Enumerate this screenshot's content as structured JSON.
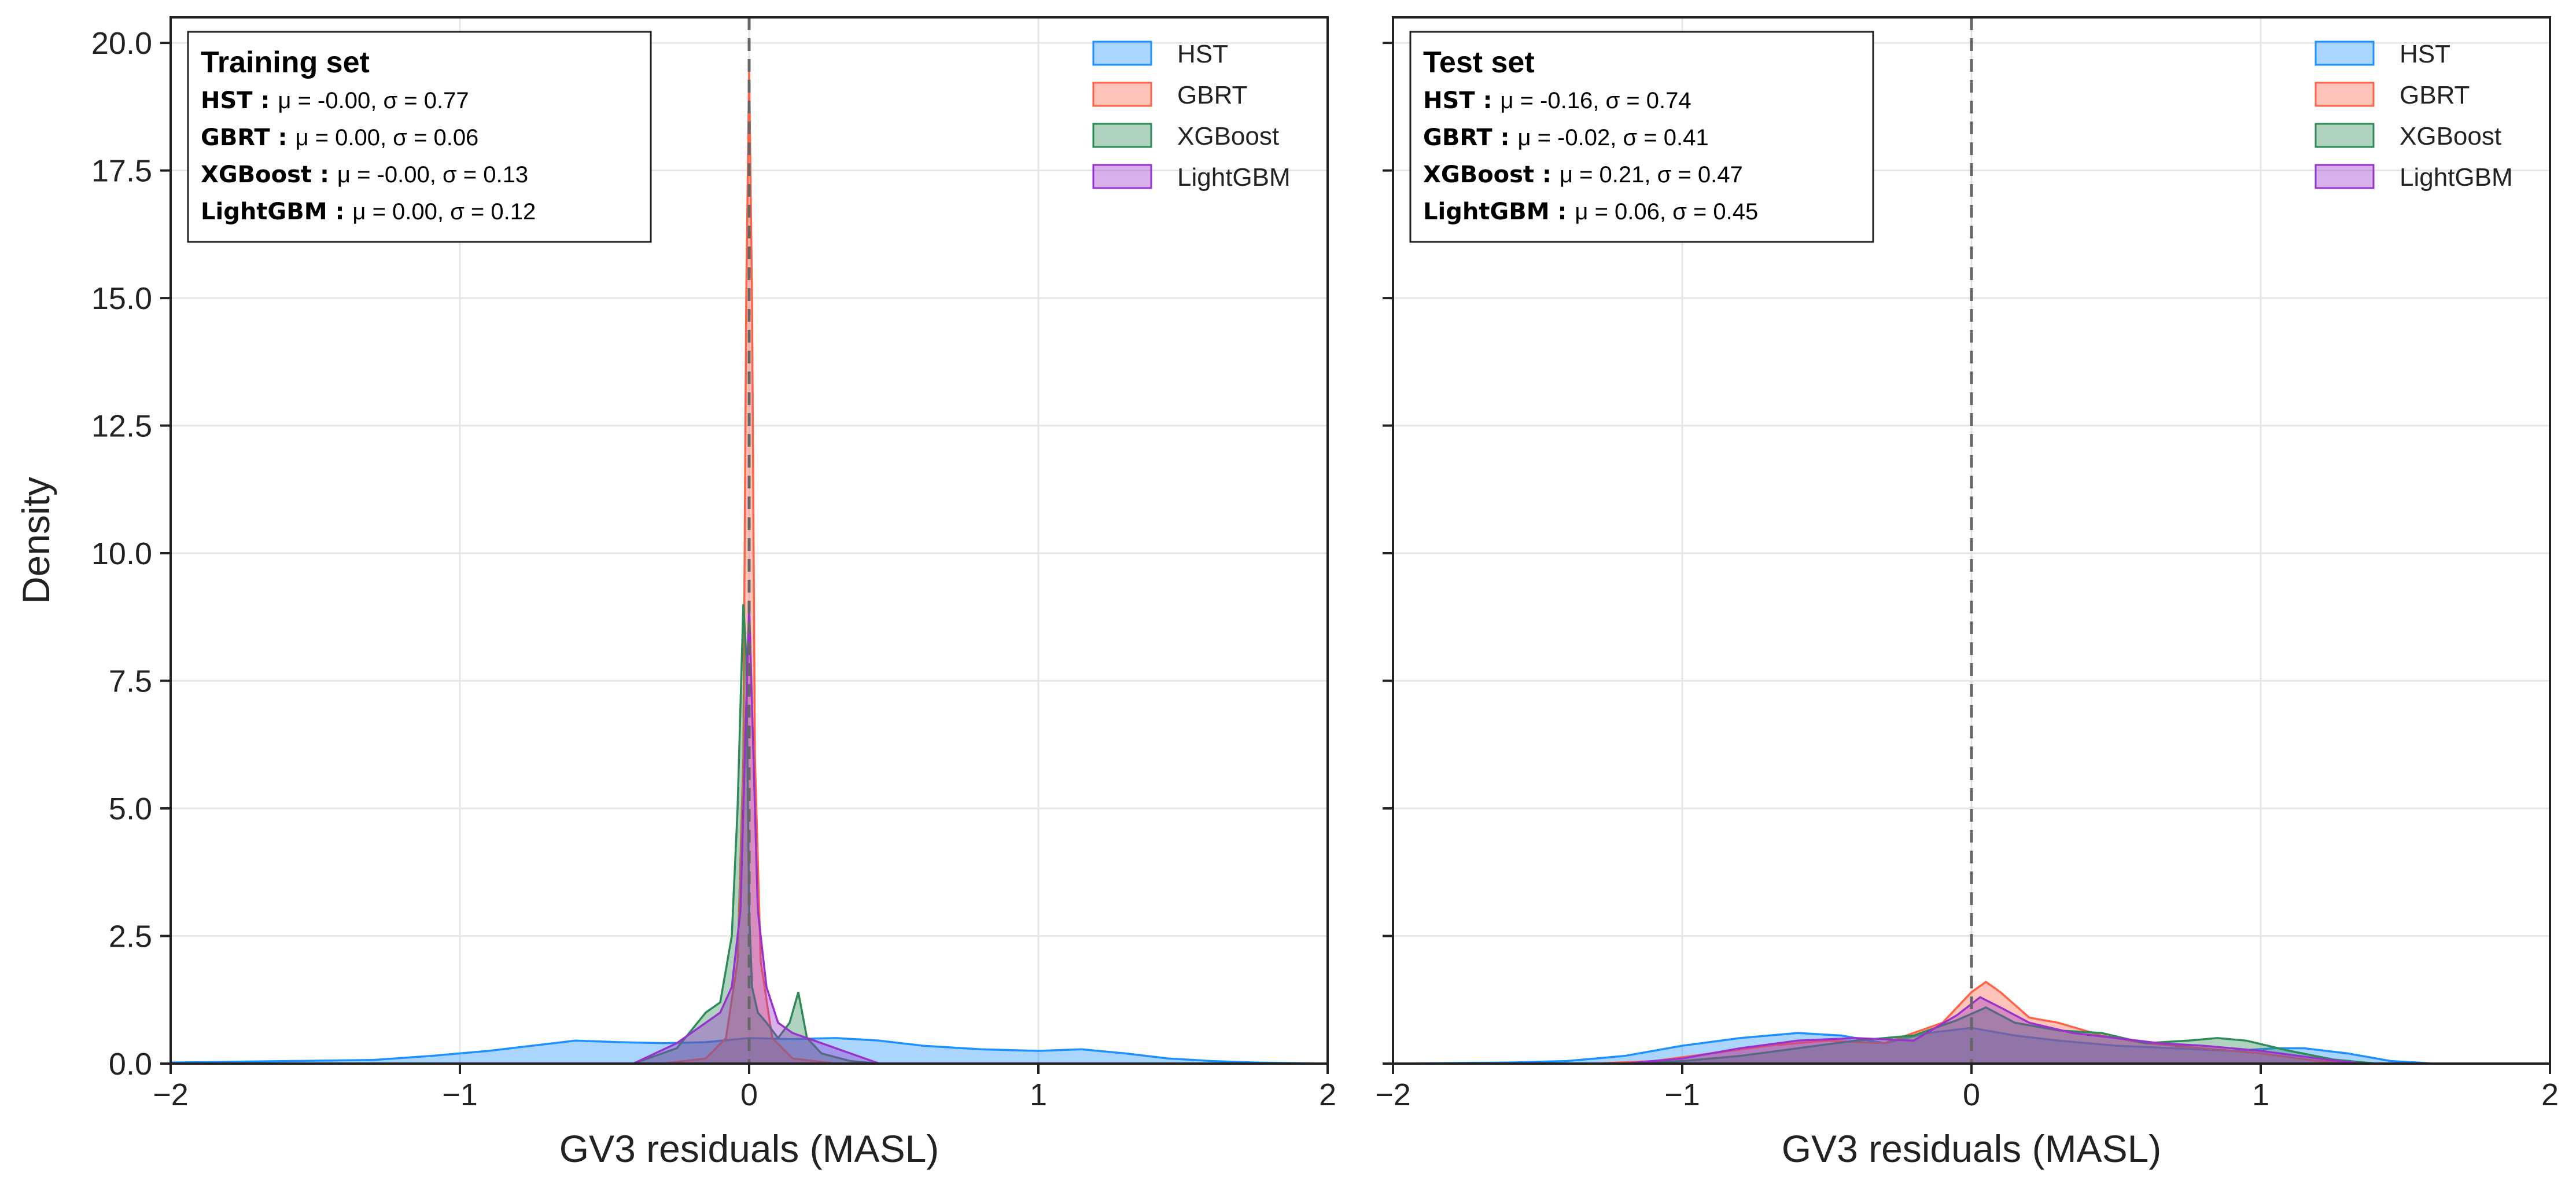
{
  "colors": {
    "HST": "#1e90ff",
    "GBRT": "#ff6347",
    "XGBoost": "#2e8b57",
    "LightGBM": "#9932cc"
  },
  "chart_data": [
    {
      "type": "area",
      "panel_title": "Training set",
      "xlabel": "GV3 residuals (MASL)",
      "ylabel": "Density",
      "xlim": [
        -2,
        2
      ],
      "ylim": [
        0,
        20.5
      ],
      "xticks": [
        -2,
        -1,
        0,
        1,
        2
      ],
      "yticks": [
        0.0,
        2.5,
        5.0,
        7.5,
        10.0,
        12.5,
        15.0,
        17.5,
        20.0
      ],
      "grid": true,
      "legend_position": "top-right",
      "stats": [
        {
          "model": "HST",
          "label": "HST :",
          "text": "μ = -0.00, σ = 0.77"
        },
        {
          "model": "GBRT",
          "label": "GBRT :",
          "text": "μ = 0.00, σ = 0.06"
        },
        {
          "model": "XGBoost",
          "label": "XGBoost :",
          "text": "μ = -0.00, σ = 0.13"
        },
        {
          "model": "LightGBM",
          "label": "LightGBM :",
          "text": "μ = 0.00, σ = 0.12"
        }
      ],
      "series": [
        {
          "name": "HST",
          "x": [
            -2.0,
            -1.6,
            -1.3,
            -1.1,
            -0.9,
            -0.75,
            -0.6,
            -0.45,
            -0.3,
            -0.15,
            0.0,
            0.15,
            0.3,
            0.45,
            0.6,
            0.8,
            1.0,
            1.15,
            1.3,
            1.45,
            1.6,
            1.75,
            2.0
          ],
          "y": [
            0.02,
            0.05,
            0.07,
            0.15,
            0.25,
            0.35,
            0.45,
            0.42,
            0.4,
            0.42,
            0.5,
            0.48,
            0.5,
            0.45,
            0.35,
            0.28,
            0.25,
            0.28,
            0.2,
            0.1,
            0.05,
            0.02,
            0.0
          ]
        },
        {
          "name": "GBRT",
          "x": [
            -0.3,
            -0.15,
            -0.08,
            -0.04,
            -0.02,
            -0.01,
            0.0,
            0.01,
            0.02,
            0.04,
            0.08,
            0.15,
            0.3
          ],
          "y": [
            0.0,
            0.1,
            0.5,
            2.0,
            6.0,
            15.0,
            19.5,
            15.0,
            6.0,
            2.0,
            0.5,
            0.1,
            0.0
          ]
        },
        {
          "name": "XGBoost",
          "x": [
            -0.4,
            -0.25,
            -0.15,
            -0.1,
            -0.06,
            -0.04,
            -0.02,
            -0.01,
            0.0,
            0.01,
            0.03,
            0.06,
            0.1,
            0.14,
            0.17,
            0.2,
            0.25,
            0.35,
            0.45
          ],
          "y": [
            0.0,
            0.3,
            1.0,
            1.2,
            2.5,
            5.0,
            9.0,
            8.0,
            3.0,
            1.5,
            1.0,
            0.8,
            0.5,
            0.8,
            1.4,
            0.5,
            0.2,
            0.05,
            0.0
          ]
        },
        {
          "name": "LightGBM",
          "x": [
            -0.4,
            -0.25,
            -0.15,
            -0.1,
            -0.06,
            -0.03,
            -0.01,
            0.0,
            0.01,
            0.03,
            0.06,
            0.1,
            0.15,
            0.25,
            0.35,
            0.45
          ],
          "y": [
            0.0,
            0.4,
            0.8,
            1.0,
            1.5,
            3.0,
            7.0,
            9.0,
            7.0,
            3.0,
            1.5,
            0.8,
            0.6,
            0.4,
            0.2,
            0.0
          ]
        }
      ]
    },
    {
      "type": "area",
      "panel_title": "Test set",
      "xlabel": "GV3 residuals (MASL)",
      "ylabel": "",
      "xlim": [
        -2,
        2
      ],
      "ylim": [
        0,
        20.5
      ],
      "xticks": [
        -2,
        -1,
        0,
        1,
        2
      ],
      "yticks": [
        0.0,
        2.5,
        5.0,
        7.5,
        10.0,
        12.5,
        15.0,
        17.5,
        20.0
      ],
      "grid": true,
      "legend_position": "top-right",
      "stats": [
        {
          "model": "HST",
          "label": "HST :",
          "text": "μ = -0.16, σ = 0.74"
        },
        {
          "model": "GBRT",
          "label": "GBRT :",
          "text": "μ = -0.02, σ = 0.41"
        },
        {
          "model": "XGBoost",
          "label": "XGBoost :",
          "text": "μ = 0.21, σ = 0.47"
        },
        {
          "model": "LightGBM",
          "label": "LightGBM :",
          "text": "μ = 0.06, σ = 0.45"
        }
      ],
      "series": [
        {
          "name": "HST",
          "x": [
            -2.0,
            -1.6,
            -1.4,
            -1.2,
            -1.0,
            -0.8,
            -0.6,
            -0.45,
            -0.3,
            -0.15,
            0.0,
            0.15,
            0.3,
            0.5,
            0.7,
            0.9,
            1.05,
            1.15,
            1.3,
            1.45,
            1.6,
            2.0
          ],
          "y": [
            0.0,
            0.02,
            0.05,
            0.15,
            0.35,
            0.5,
            0.6,
            0.55,
            0.4,
            0.6,
            0.7,
            0.55,
            0.45,
            0.35,
            0.3,
            0.25,
            0.3,
            0.3,
            0.2,
            0.05,
            0.0,
            0.0
          ]
        },
        {
          "name": "GBRT",
          "x": [
            -1.3,
            -1.1,
            -0.9,
            -0.7,
            -0.5,
            -0.3,
            -0.1,
            0.0,
            0.05,
            0.1,
            0.2,
            0.3,
            0.45,
            0.6,
            0.8,
            1.0,
            1.2,
            1.4
          ],
          "y": [
            0.0,
            0.05,
            0.2,
            0.35,
            0.45,
            0.4,
            0.8,
            1.4,
            1.6,
            1.4,
            0.9,
            0.8,
            0.55,
            0.4,
            0.3,
            0.2,
            0.05,
            0.0
          ]
        },
        {
          "name": "XGBoost",
          "x": [
            -1.2,
            -1.0,
            -0.8,
            -0.6,
            -0.4,
            -0.2,
            -0.05,
            0.05,
            0.15,
            0.3,
            0.45,
            0.6,
            0.75,
            0.85,
            0.95,
            1.1,
            1.25,
            1.4
          ],
          "y": [
            0.0,
            0.05,
            0.15,
            0.3,
            0.45,
            0.55,
            0.85,
            1.1,
            0.8,
            0.65,
            0.6,
            0.4,
            0.45,
            0.5,
            0.45,
            0.25,
            0.08,
            0.0
          ]
        },
        {
          "name": "LightGBM",
          "x": [
            -1.2,
            -1.0,
            -0.8,
            -0.6,
            -0.4,
            -0.2,
            -0.05,
            0.03,
            0.1,
            0.2,
            0.35,
            0.5,
            0.65,
            0.8,
            1.0,
            1.2,
            1.35
          ],
          "y": [
            0.0,
            0.1,
            0.3,
            0.45,
            0.5,
            0.45,
            0.95,
            1.3,
            1.1,
            0.8,
            0.6,
            0.5,
            0.4,
            0.35,
            0.25,
            0.1,
            0.0
          ]
        }
      ]
    }
  ]
}
